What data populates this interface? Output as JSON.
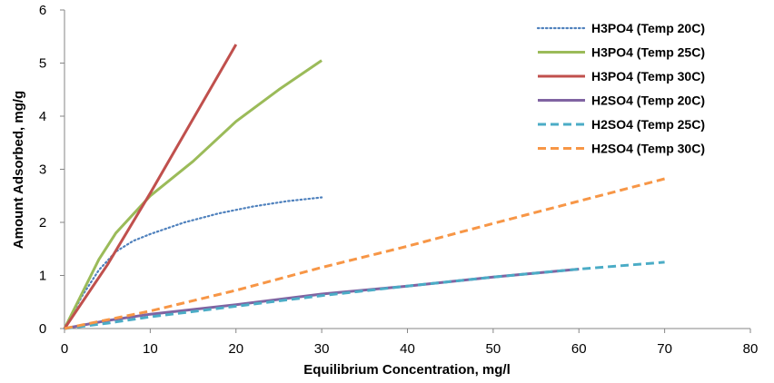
{
  "chart_data": {
    "type": "line",
    "title": "",
    "xlabel": "Equilibrium Concentration, mg/l",
    "ylabel": "Amount Adsorbed, mg/g",
    "xlim": [
      0,
      80
    ],
    "ylim": [
      0,
      6
    ],
    "x_ticks": [
      "0",
      "10",
      "20",
      "30",
      "40",
      "50",
      "60",
      "70",
      "80"
    ],
    "y_ticks": [
      "0",
      "1",
      "2",
      "3",
      "4",
      "5",
      "6"
    ],
    "grid": false,
    "legend_position": "top-right",
    "series": [
      {
        "name": "H3PO4 (Temp 20C)",
        "color": "#4F81BD",
        "style": "dotted",
        "points": [
          [
            0,
            0
          ],
          [
            2,
            0.6
          ],
          [
            4,
            1.1
          ],
          [
            6,
            1.45
          ],
          [
            8,
            1.65
          ],
          [
            10,
            1.78
          ],
          [
            14,
            2.0
          ],
          [
            18,
            2.17
          ],
          [
            22,
            2.3
          ],
          [
            26,
            2.4
          ],
          [
            30,
            2.47
          ]
        ]
      },
      {
        "name": "H3PO4 (Temp 25C)",
        "color": "#9BBB59",
        "style": "solid",
        "points": [
          [
            0,
            0
          ],
          [
            2,
            0.65
          ],
          [
            4,
            1.3
          ],
          [
            6,
            1.8
          ],
          [
            8,
            2.15
          ],
          [
            10,
            2.5
          ],
          [
            15,
            3.15
          ],
          [
            20,
            3.9
          ],
          [
            25,
            4.5
          ],
          [
            30,
            5.05
          ]
        ]
      },
      {
        "name": "H3PO4 (Temp 30C)",
        "color": "#C0504D",
        "style": "solid",
        "points": [
          [
            0,
            0
          ],
          [
            5,
            1.2
          ],
          [
            10,
            2.55
          ],
          [
            15,
            3.95
          ],
          [
            20,
            5.35
          ]
        ]
      },
      {
        "name": "H2SO4 (Temp 20C)",
        "color": "#8064A2",
        "style": "solid",
        "points": [
          [
            0,
            0
          ],
          [
            5,
            0.15
          ],
          [
            10,
            0.27
          ],
          [
            20,
            0.45
          ],
          [
            30,
            0.65
          ],
          [
            40,
            0.8
          ],
          [
            50,
            0.97
          ],
          [
            60,
            1.12
          ]
        ]
      },
      {
        "name": "H2SO4 (Temp 25C)",
        "color": "#4BACC6",
        "style": "dashed",
        "points": [
          [
            0,
            0
          ],
          [
            5,
            0.1
          ],
          [
            10,
            0.22
          ],
          [
            20,
            0.42
          ],
          [
            30,
            0.62
          ],
          [
            40,
            0.8
          ],
          [
            50,
            0.97
          ],
          [
            60,
            1.12
          ],
          [
            70,
            1.25
          ]
        ]
      },
      {
        "name": "H2SO4 (Temp 30C)",
        "color": "#F79646",
        "style": "dashed",
        "points": [
          [
            0,
            0
          ],
          [
            10,
            0.33
          ],
          [
            20,
            0.72
          ],
          [
            30,
            1.15
          ],
          [
            40,
            1.55
          ],
          [
            50,
            1.98
          ],
          [
            60,
            2.4
          ],
          [
            70,
            2.82
          ]
        ]
      }
    ]
  }
}
